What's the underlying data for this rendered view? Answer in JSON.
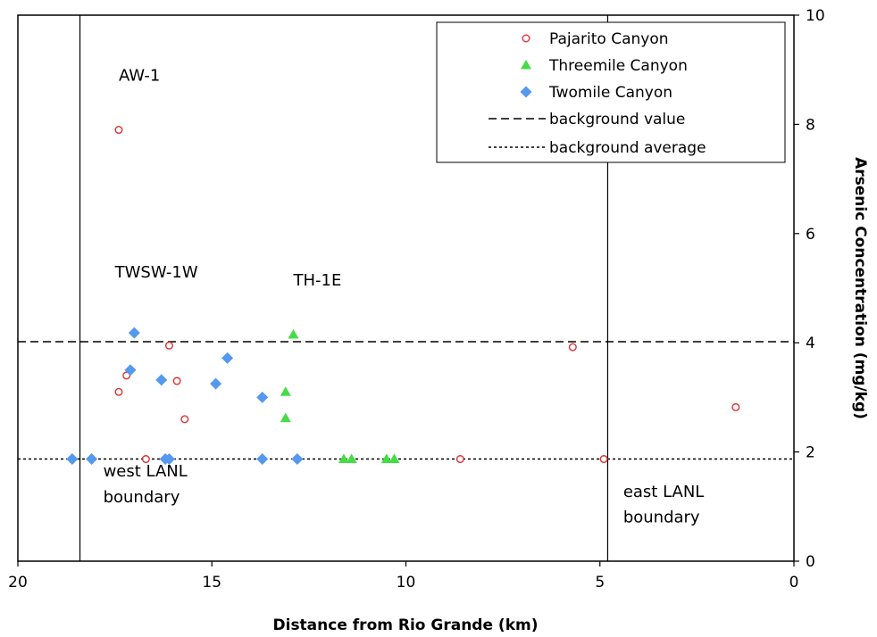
{
  "chart_data": {
    "type": "scatter",
    "xlabel": "Distance from Rio Grande (km)",
    "ylabel": "Arsenic Concentration (mg/kg)",
    "xlim": [
      20,
      0
    ],
    "ylim": [
      0,
      10
    ],
    "x_ticks": [
      20,
      15,
      10,
      5,
      0
    ],
    "y_ticks": [
      0,
      2,
      4,
      6,
      8,
      10
    ],
    "x_axis_reversed": true,
    "y_axis_side": "right",
    "grid": false,
    "legend_position": "top-right",
    "series": [
      {
        "name": "Pajarito Canyon",
        "marker": "open-circle",
        "color": "#e03030",
        "points": [
          {
            "x": 17.4,
            "y": 7.9
          },
          {
            "x": 16.1,
            "y": 3.95
          },
          {
            "x": 17.2,
            "y": 3.4
          },
          {
            "x": 17.4,
            "y": 3.1
          },
          {
            "x": 15.9,
            "y": 3.3
          },
          {
            "x": 15.7,
            "y": 2.6
          },
          {
            "x": 16.7,
            "y": 1.87
          },
          {
            "x": 12.8,
            "y": 1.87
          },
          {
            "x": 8.6,
            "y": 1.87
          },
          {
            "x": 5.7,
            "y": 3.92
          },
          {
            "x": 4.9,
            "y": 1.87
          },
          {
            "x": 1.5,
            "y": 2.82
          }
        ]
      },
      {
        "name": "Threemile Canyon",
        "marker": "triangle",
        "color": "#44dd44",
        "points": [
          {
            "x": 12.9,
            "y": 4.15
          },
          {
            "x": 13.1,
            "y": 3.1
          },
          {
            "x": 13.1,
            "y": 2.62
          },
          {
            "x": 11.6,
            "y": 1.87
          },
          {
            "x": 11.4,
            "y": 1.87
          },
          {
            "x": 10.5,
            "y": 1.87
          },
          {
            "x": 10.3,
            "y": 1.87
          }
        ]
      },
      {
        "name": "Twomile Canyon",
        "marker": "diamond",
        "color": "#5599ee",
        "points": [
          {
            "x": 17.0,
            "y": 4.18
          },
          {
            "x": 17.1,
            "y": 3.5
          },
          {
            "x": 16.3,
            "y": 3.32
          },
          {
            "x": 14.6,
            "y": 3.72
          },
          {
            "x": 14.9,
            "y": 3.25
          },
          {
            "x": 13.7,
            "y": 3.0
          },
          {
            "x": 18.6,
            "y": 1.87
          },
          {
            "x": 18.1,
            "y": 1.87
          },
          {
            "x": 16.2,
            "y": 1.87
          },
          {
            "x": 16.1,
            "y": 1.87
          },
          {
            "x": 13.7,
            "y": 1.87
          },
          {
            "x": 12.8,
            "y": 1.87
          }
        ]
      }
    ],
    "reference_lines": [
      {
        "name": "background value",
        "style": "dashed",
        "y": 4.02
      },
      {
        "name": "background average",
        "style": "dotted",
        "y": 1.87
      }
    ],
    "vertical_lines": [
      {
        "x": 18.4
      },
      {
        "x": 4.8
      }
    ],
    "annotations": [
      {
        "text": "AW-1",
        "x": 17.4,
        "y": 8.8
      },
      {
        "text": "TWSW-1W",
        "x": 17.5,
        "y": 5.2
      },
      {
        "text": "TH-1E",
        "x": 12.9,
        "y": 5.05
      },
      {
        "text": "west LANL",
        "x": 17.8,
        "y": 1.55
      },
      {
        "text": "boundary",
        "x": 17.8,
        "y": 1.08
      },
      {
        "text": "east LANL",
        "x": 4.4,
        "y": 1.18
      },
      {
        "text": "boundary",
        "x": 4.4,
        "y": 0.71
      }
    ]
  }
}
